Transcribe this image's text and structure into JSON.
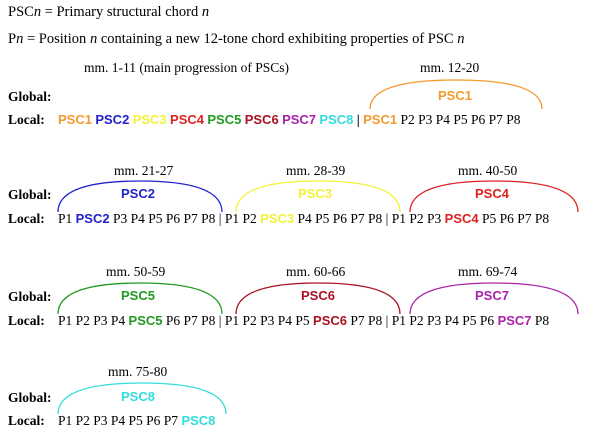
{
  "legend": {
    "line1_prefix": "PSC",
    "line1_var": "n",
    "line1_mid": " = Primary structural chord ",
    "line1_var2": "n",
    "line2_prefix": "P",
    "line2_var": "n",
    "line2_mid": " = Position ",
    "line2_var2": "n",
    "line2_rest": " containing a new 12-tone chord exhibiting properties of PSC ",
    "line2_var3": "n"
  },
  "labels": {
    "global": "Global:",
    "local": "Local:"
  },
  "colors": {
    "PSC1": "#f39a2c",
    "PSC2": "#2222cc",
    "PSC3": "#f2f23a",
    "PSC4": "#dd2222",
    "PSC5": "#229922",
    "PSC6": "#aa1122",
    "PSC7": "#aa22aa",
    "PSC8": "#33dddd"
  },
  "row1": {
    "header_left": "mm. 1-11 (main progression of PSCs)",
    "header_right": "mm. 12-20",
    "global_label": "PSC1",
    "local_main": [
      "PSC1",
      "PSC2",
      "PSC3",
      "PSC4",
      "PSC5",
      "PSC6",
      "PSC7",
      "PSC8"
    ],
    "separator": "|",
    "local_tail_first": "PSC1",
    "local_tail_rest": "P2 P3 P4 P5 P6 P7 P8"
  },
  "row2": {
    "headers": [
      "mm. 21-27",
      "mm. 28-39",
      "mm. 40-50"
    ],
    "globals": [
      "PSC2",
      "PSC3",
      "PSC4"
    ],
    "groups": [
      {
        "before": "P1 ",
        "hl": "PSC2",
        "after": " P3 P4 P5 P6 P7 P8"
      },
      {
        "before": "P1 P2 ",
        "hl": "PSC3",
        "after": " P4 P5 P6 P7 P8"
      },
      {
        "before": "P1 P2 P3 ",
        "hl": "PSC4",
        "after": " P5 P6 P7 P8"
      }
    ],
    "separator": "|"
  },
  "row3": {
    "headers": [
      "mm. 50-59",
      "mm. 60-66",
      "mm. 69-74"
    ],
    "globals": [
      "PSC5",
      "PSC6",
      "PSC7"
    ],
    "groups": [
      {
        "before": "P1 P2 P3 P4 ",
        "hl": "PSC5",
        "after": " P6 P7 P8"
      },
      {
        "before": "P1 P2 P3 P4 P5 ",
        "hl": "PSC6",
        "after": " P7 P8"
      },
      {
        "before": "P1 P2 P3 P4 P5 P6 ",
        "hl": "PSC7",
        "after": " P8"
      }
    ],
    "separator": "|"
  },
  "row4": {
    "header": "mm. 75-80",
    "global": "PSC8",
    "group": {
      "before": "P1 P2 P3 P4 P5 P6 P7 ",
      "hl": "PSC8",
      "after": ""
    }
  }
}
